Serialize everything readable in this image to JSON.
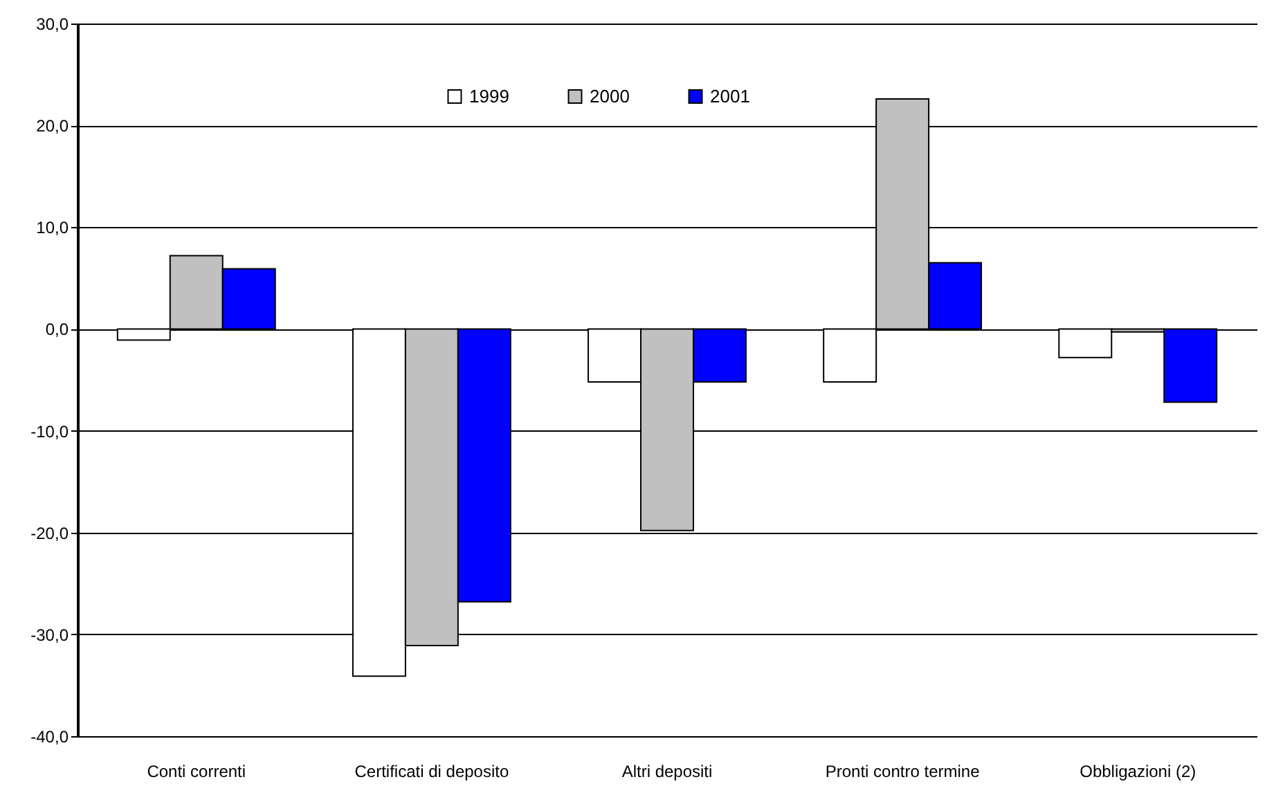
{
  "chart_data": {
    "type": "bar",
    "categories": [
      "Conti correnti",
      "Certificati di deposito",
      "Altri depositi",
      "Pronti contro termine",
      "Obbligazioni (2)"
    ],
    "series": [
      {
        "name": "1999",
        "color": "#ffffff",
        "values": [
          -1.1,
          -34.1,
          -5.2,
          -5.2,
          -2.8
        ]
      },
      {
        "name": "2000",
        "color": "#c0c0c0",
        "values": [
          7.2,
          -31.1,
          -19.8,
          22.6,
          -0.3
        ]
      },
      {
        "name": "2001",
        "color": "#0000ff",
        "values": [
          5.9,
          -26.8,
          -5.2,
          6.5,
          -7.2
        ]
      }
    ],
    "ylim": [
      -40,
      30
    ],
    "yticks": [
      {
        "value": -40,
        "label": "-40,0"
      },
      {
        "value": -30,
        "label": "-30,0"
      },
      {
        "value": -20,
        "label": "-20,0"
      },
      {
        "value": -10,
        "label": "-10,0"
      },
      {
        "value": 0,
        "label": "0,0"
      },
      {
        "value": 10,
        "label": "10,0"
      },
      {
        "value": 20,
        "label": "20,0"
      },
      {
        "value": 30,
        "label": "30,0"
      }
    ],
    "grid": "y",
    "legend": "top"
  }
}
